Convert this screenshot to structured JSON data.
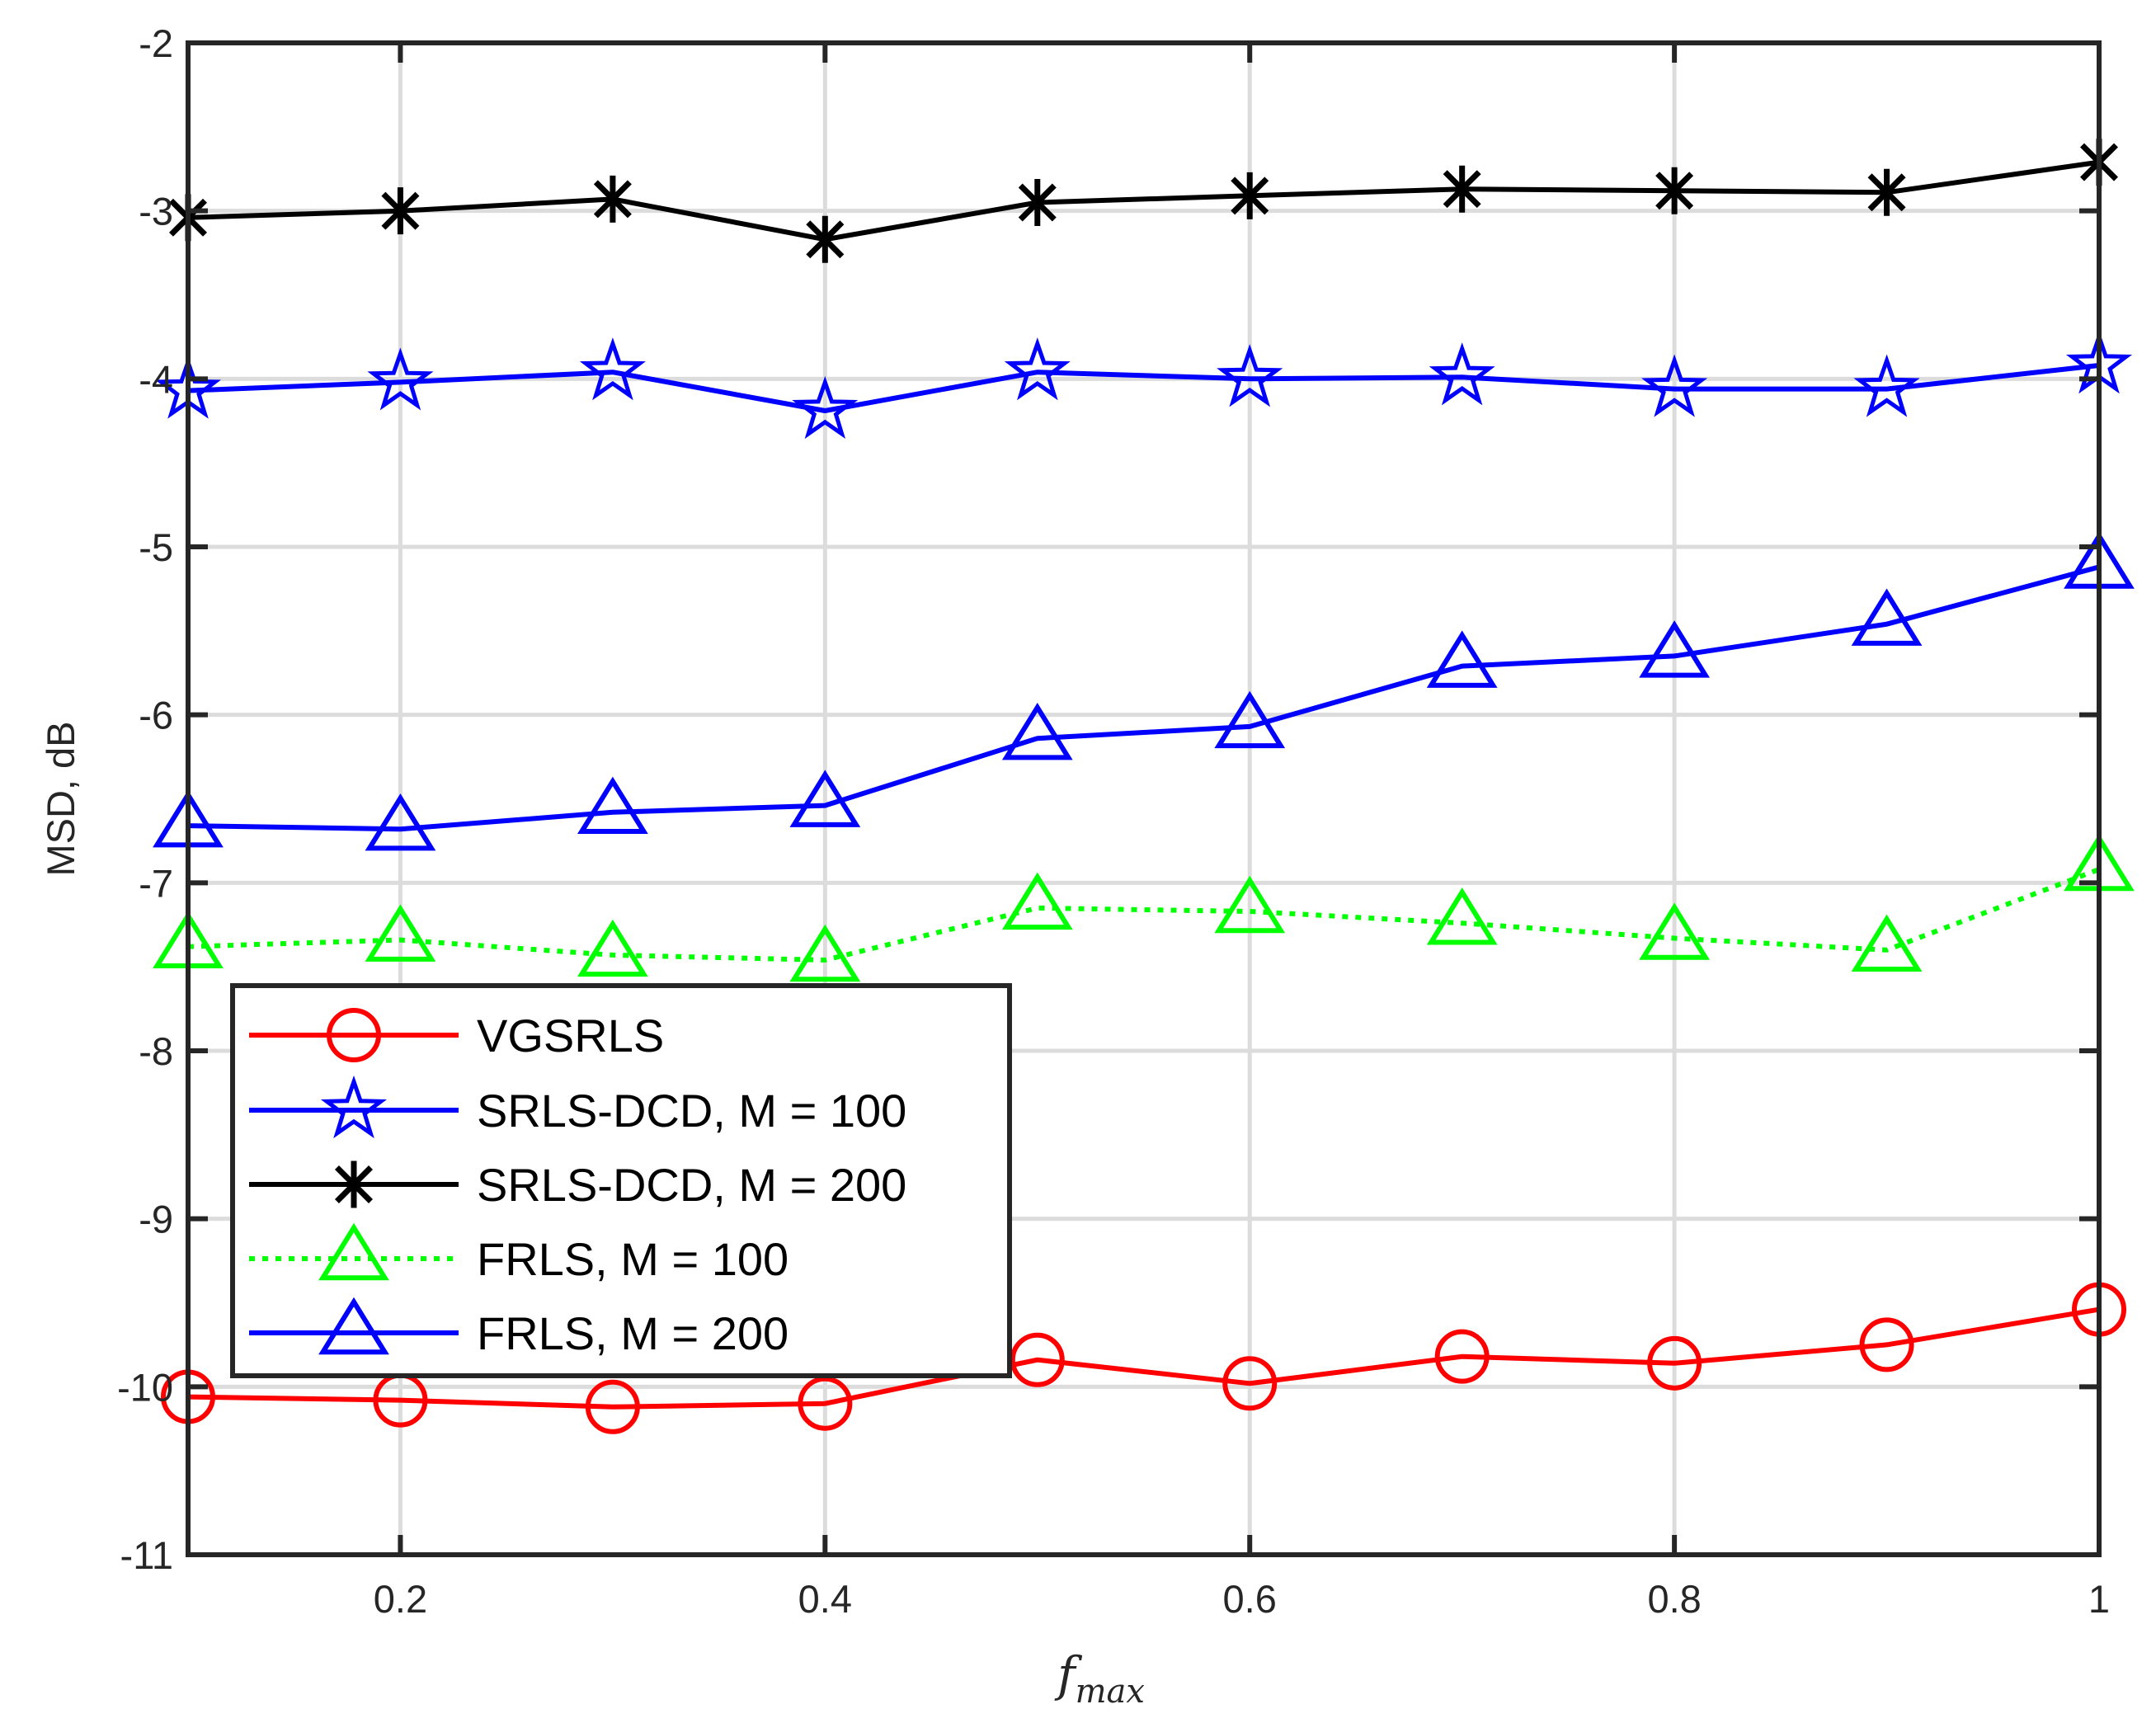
{
  "chart_data": {
    "type": "line",
    "title": "",
    "xlabel": "f",
    "xlabel_subscript": "max",
    "ylabel": "MSD, dB",
    "xlim": [
      0.1,
      1.0
    ],
    "ylim": [
      -11,
      -2
    ],
    "xticks": [
      0.2,
      0.4,
      0.6,
      0.8,
      1.0
    ],
    "xtick_labels": [
      "0.2",
      "0.4",
      "0.6",
      "0.8",
      "1"
    ],
    "yticks": [
      -11,
      -10,
      -9,
      -8,
      -7,
      -6,
      -5,
      -4,
      -3,
      -2
    ],
    "ytick_labels": [
      "-11",
      "-10",
      "-9",
      "-8",
      "-7",
      "-6",
      "-5",
      "-4",
      "-3",
      "-2"
    ],
    "grid": true,
    "legend_position": "bottom-left",
    "x": [
      0.1,
      0.2,
      0.3,
      0.4,
      0.5,
      0.6,
      0.7,
      0.8,
      0.9,
      1.0
    ],
    "series": [
      {
        "name": "VGSRLS",
        "color": "#ff0000",
        "marker": "circle",
        "line_style": "solid",
        "values": [
          -10.06,
          -10.08,
          -10.12,
          -10.1,
          -9.84,
          -9.98,
          -9.82,
          -9.86,
          -9.75,
          -9.54
        ]
      },
      {
        "name": "SRLS-DCD, M = 100",
        "color": "#0000ff",
        "marker": "star",
        "line_style": "solid",
        "values": [
          -4.07,
          -4.02,
          -3.96,
          -4.19,
          -3.96,
          -4.0,
          -3.99,
          -4.06,
          -4.06,
          -3.92
        ]
      },
      {
        "name": "SRLS-DCD, M = 200",
        "color": "#000000",
        "marker": "asterisk",
        "line_style": "solid",
        "values": [
          -3.04,
          -3.0,
          -2.93,
          -3.17,
          -2.95,
          -2.91,
          -2.87,
          -2.88,
          -2.89,
          -2.71
        ]
      },
      {
        "name": "FRLS, M = 100",
        "color": "#00ff00",
        "marker": "triangle",
        "line_style": "dotted",
        "values": [
          -7.38,
          -7.34,
          -7.43,
          -7.46,
          -7.15,
          -7.17,
          -7.24,
          -7.33,
          -7.4,
          -6.92
        ]
      },
      {
        "name": "FRLS, M = 200",
        "color": "#0000ff",
        "marker": "triangle",
        "line_style": "solid",
        "values": [
          -6.66,
          -6.68,
          -6.58,
          -6.54,
          -6.14,
          -6.07,
          -5.71,
          -5.65,
          -5.46,
          -5.12
        ]
      }
    ]
  }
}
